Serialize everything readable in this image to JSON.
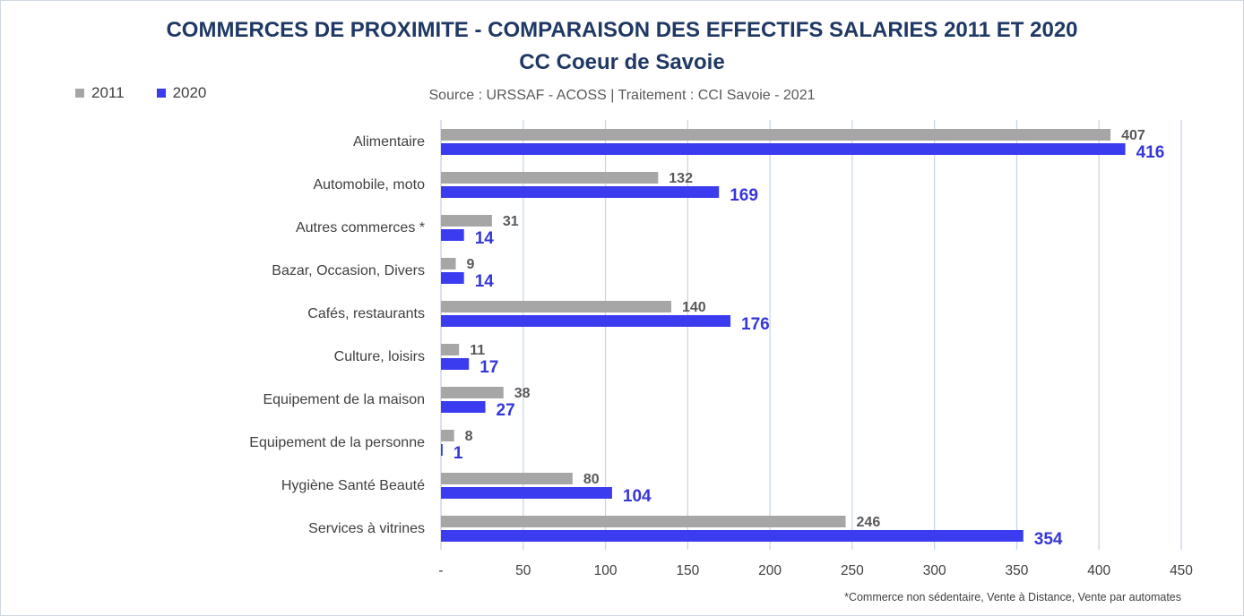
{
  "chart_data": {
    "type": "bar",
    "orientation": "horizontal",
    "title": "COMMERCES DE PROXIMITE - COMPARAISON DES EFFECTIFS SALARIES 2011 ET 2020",
    "subtitle": "CC Coeur de Savoie",
    "source": "Source  : URSSAF - ACOSS  |  Traitement : CCI Savoie - 2021",
    "footnote": "*Commerce non sédentaire, Vente à Distance, Vente par automates",
    "categories": [
      "Alimentaire",
      "Automobile, moto",
      "Autres commerces *",
      "Bazar, Occasion, Divers",
      "Cafés, restaurants",
      "Culture, loisirs",
      "Equipement de la maison",
      "Equipement de la personne",
      "Hygiène Santé Beauté",
      "Services à vitrines"
    ],
    "series": [
      {
        "name": "2011",
        "color": "#a6a6a6",
        "label_color": "#595959",
        "values": [
          407,
          132,
          31,
          9,
          140,
          11,
          38,
          8,
          80,
          246
        ]
      },
      {
        "name": "2020",
        "color": "#3b3bf0",
        "label_color": "#3636d8",
        "values": [
          416,
          169,
          14,
          14,
          176,
          17,
          27,
          1,
          104,
          354
        ]
      }
    ],
    "xlim": [
      0,
      450
    ],
    "xticks": [
      0,
      50,
      100,
      150,
      200,
      250,
      300,
      350,
      400,
      450
    ],
    "xtick_labels": [
      "-",
      "50",
      "100",
      "150",
      "200",
      "250",
      "300",
      "350",
      "400",
      "450"
    ],
    "grid": true,
    "legend_position": "top-left"
  }
}
